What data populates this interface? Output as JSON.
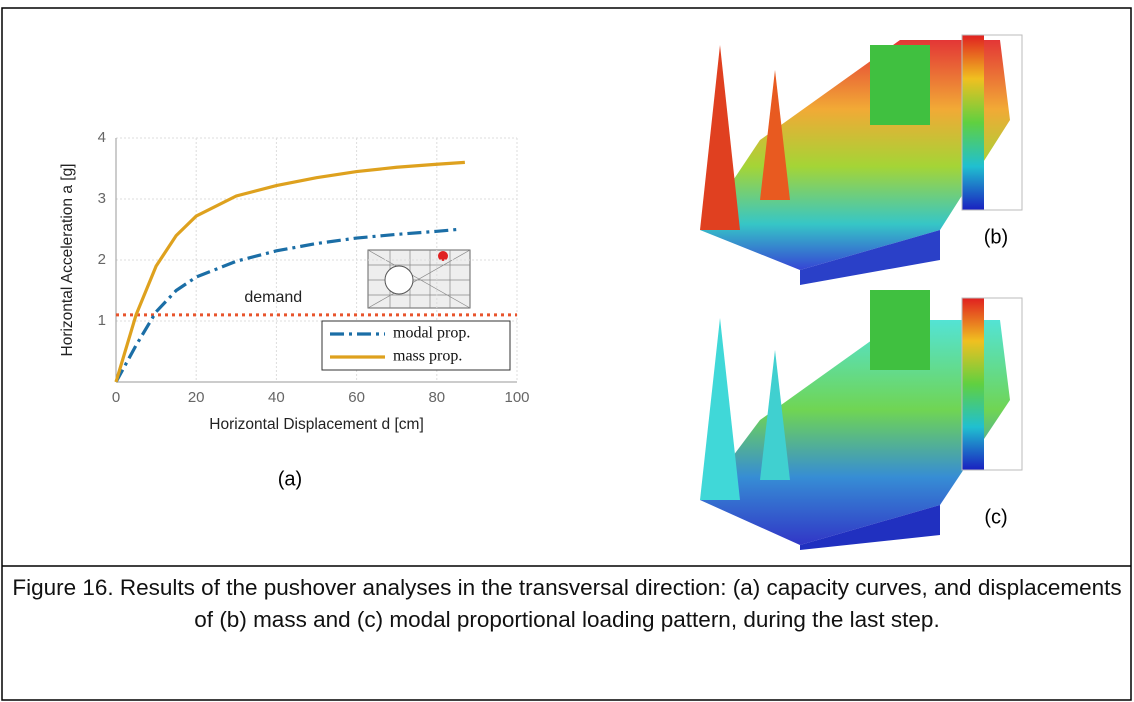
{
  "chart_data": {
    "type": "line",
    "xlabel": "Horizontal Displacement d [cm]",
    "ylabel": "Horizontal Acceleration a [g]",
    "xlim": [
      0,
      100
    ],
    "xticks": [
      0,
      20,
      40,
      60,
      80,
      100
    ],
    "ylim": [
      0,
      4
    ],
    "yticks": [
      1,
      2,
      3,
      4
    ],
    "grid": true,
    "legend": "lower right",
    "series": [
      {
        "name": "modal prop.",
        "color": "#1b6ea6",
        "dash": "dashdot",
        "x": [
          0,
          5,
          10,
          15,
          20,
          30,
          40,
          50,
          60,
          70,
          80,
          85
        ],
        "values": [
          0,
          0.6,
          1.15,
          1.5,
          1.72,
          1.98,
          2.15,
          2.27,
          2.36,
          2.42,
          2.47,
          2.5
        ]
      },
      {
        "name": "mass prop.",
        "color": "#dea11e",
        "dash": "solid",
        "x": [
          0,
          5,
          10,
          15,
          20,
          30,
          40,
          50,
          60,
          70,
          80,
          87
        ],
        "values": [
          0,
          1.1,
          1.9,
          2.4,
          2.72,
          3.05,
          3.22,
          3.35,
          3.45,
          3.52,
          3.57,
          3.6
        ]
      }
    ],
    "reference_line": {
      "value": 1.1,
      "label": "demand",
      "color": "#e8542c"
    }
  },
  "panel_labels": [
    "(a)",
    "(b)",
    "(c)"
  ],
  "caption": "Figure 16. Results of the pushover analyses in the transversal direction: (a) capacity curves, and displacements of (b) mass and (c) modal proportional loading pattern, during the last step."
}
